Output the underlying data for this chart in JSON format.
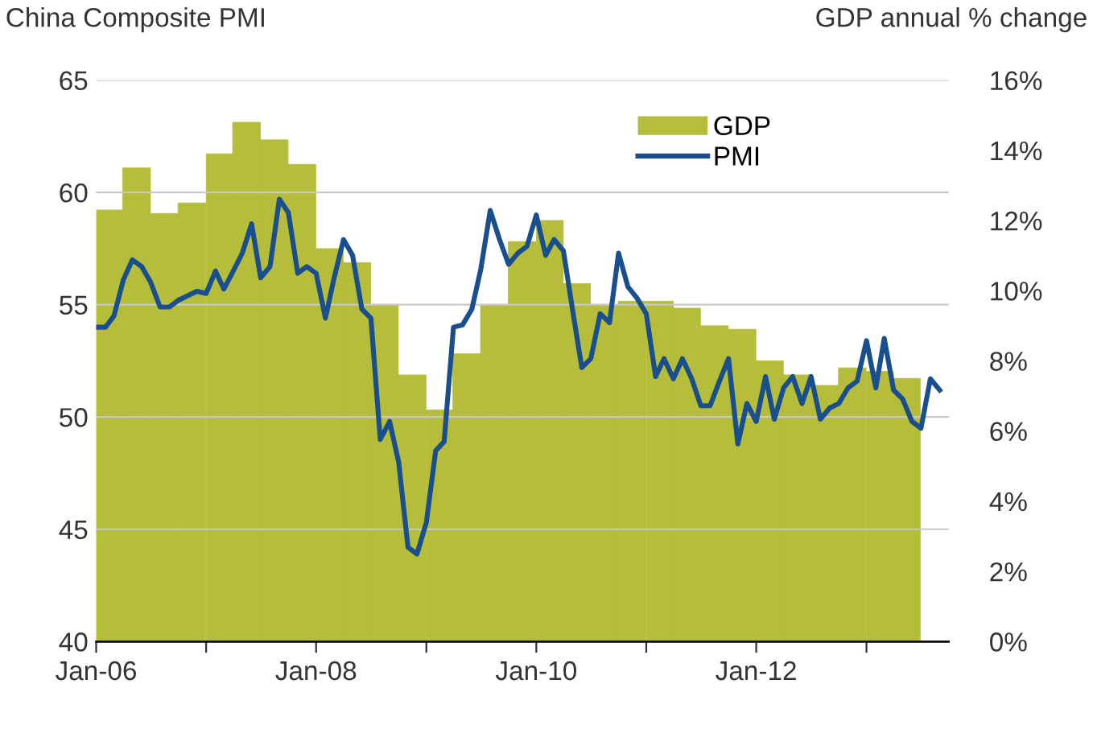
{
  "chart_data": {
    "type": "line",
    "ylabel": "China Composite PMI",
    "y2label": "GDP annual % change",
    "xlim": [
      "2006-01",
      "2013-10"
    ],
    "xticks": [
      {
        "value": "2006-01",
        "label": "Jan-06"
      },
      {
        "value": "2007-01",
        "label": null
      },
      {
        "value": "2008-01",
        "label": "Jan-08"
      },
      {
        "value": "2009-01",
        "label": null
      },
      {
        "value": "2010-01",
        "label": "Jan-10"
      },
      {
        "value": "2011-01",
        "label": null
      },
      {
        "value": "2012-01",
        "label": "Jan-12"
      },
      {
        "value": "2013-01",
        "label": null
      }
    ],
    "ylim": [
      40,
      65
    ],
    "yticks": [
      40,
      45,
      50,
      55,
      60,
      65
    ],
    "y2lim": [
      0,
      16
    ],
    "y2ticks": [
      {
        "value": 0,
        "label": "0%"
      },
      {
        "value": 2,
        "label": "2%"
      },
      {
        "value": 4,
        "label": "4%"
      },
      {
        "value": 6,
        "label": "6%"
      },
      {
        "value": 8,
        "label": "8%"
      },
      {
        "value": 10,
        "label": "10%"
      },
      {
        "value": 12,
        "label": "12%"
      },
      {
        "value": 14,
        "label": "14%"
      },
      {
        "value": 16,
        "label": "16%"
      }
    ],
    "grid": "y",
    "legend": "top right",
    "series": [
      {
        "name": "GDP",
        "type": "bar",
        "axis": "y2",
        "color": "#b5bd3a",
        "x": [
          "2006-02-15",
          "2006-05-15",
          "2006-08-15",
          "2006-11-15",
          "2007-02-15",
          "2007-05-15",
          "2007-08-15",
          "2007-11-15",
          "2008-02-15",
          "2008-05-15",
          "2008-08-15",
          "2008-11-15",
          "2009-02-15",
          "2009-05-15",
          "2009-08-15",
          "2009-11-15",
          "2010-02-15",
          "2010-05-15",
          "2010-08-15",
          "2010-11-15",
          "2011-02-15",
          "2011-05-15",
          "2011-08-15",
          "2011-11-15",
          "2012-02-15",
          "2012-05-15",
          "2012-08-15",
          "2012-11-15",
          "2013-02-15",
          "2013-05-15"
        ],
        "values": [
          12.3,
          13.5,
          12.2,
          12.5,
          13.9,
          14.8,
          14.3,
          13.6,
          11.2,
          10.8,
          9.6,
          7.6,
          6.6,
          8.2,
          9.6,
          11.4,
          12.0,
          10.2,
          9.6,
          9.7,
          9.7,
          9.5,
          9.0,
          8.9,
          8.0,
          7.6,
          7.3,
          7.8,
          7.7,
          7.5
        ]
      },
      {
        "name": "PMI",
        "color": "#1a4f8f",
        "line_style": "solid",
        "x": [
          "2006-01",
          "2006-02",
          "2006-03",
          "2006-04",
          "2006-05",
          "2006-06",
          "2006-07",
          "2006-08",
          "2006-09",
          "2006-10",
          "2006-11",
          "2006-12",
          "2007-01",
          "2007-02",
          "2007-03",
          "2007-04",
          "2007-05",
          "2007-06",
          "2007-07",
          "2007-08",
          "2007-09",
          "2007-10",
          "2007-11",
          "2007-12",
          "2008-01",
          "2008-02",
          "2008-03",
          "2008-04",
          "2008-05",
          "2008-06",
          "2008-07",
          "2008-08",
          "2008-09",
          "2008-10",
          "2008-11",
          "2008-12",
          "2009-01",
          "2009-02",
          "2009-03",
          "2009-04",
          "2009-05",
          "2009-06",
          "2009-07",
          "2009-08",
          "2009-09",
          "2009-10",
          "2009-11",
          "2009-12",
          "2010-01",
          "2010-02",
          "2010-03",
          "2010-04",
          "2010-05",
          "2010-06",
          "2010-07",
          "2010-08",
          "2010-09",
          "2010-10",
          "2010-11",
          "2010-12",
          "2011-01",
          "2011-02",
          "2011-03",
          "2011-04",
          "2011-05",
          "2011-06",
          "2011-07",
          "2011-08",
          "2011-09",
          "2011-10",
          "2011-11",
          "2011-12",
          "2012-01",
          "2012-02",
          "2012-03",
          "2012-04",
          "2012-05",
          "2012-06",
          "2012-07",
          "2012-08",
          "2012-09",
          "2012-10",
          "2012-11",
          "2012-12",
          "2013-01",
          "2013-02",
          "2013-03",
          "2013-04",
          "2013-05",
          "2013-06",
          "2013-07",
          "2013-08",
          "2013-09"
        ],
        "values": [
          54.0,
          54.0,
          54.5,
          56.1,
          57.0,
          56.7,
          56.0,
          54.9,
          54.9,
          55.2,
          55.4,
          55.6,
          55.5,
          56.5,
          55.7,
          56.5,
          57.3,
          58.6,
          56.2,
          56.7,
          59.7,
          59.1,
          56.4,
          56.7,
          56.4,
          54.4,
          56.2,
          57.9,
          57.2,
          54.8,
          54.4,
          49.0,
          49.8,
          48.0,
          44.2,
          43.9,
          45.3,
          48.5,
          48.9,
          54.0,
          54.1,
          54.8,
          56.6,
          59.2,
          57.9,
          56.8,
          57.3,
          57.6,
          59.0,
          57.2,
          57.9,
          57.4,
          54.8,
          52.2,
          52.6,
          54.6,
          54.2,
          57.3,
          55.8,
          55.3,
          54.6,
          51.8,
          52.6,
          51.7,
          52.6,
          51.7,
          50.5,
          50.5,
          51.6,
          52.6,
          48.8,
          50.6,
          49.8,
          51.8,
          49.9,
          51.3,
          51.8,
          50.6,
          51.8,
          49.9,
          50.4,
          50.6,
          51.3,
          51.6,
          53.4,
          51.3,
          53.5,
          51.2,
          50.8,
          49.8,
          49.5,
          51.7,
          51.2
        ]
      }
    ]
  }
}
